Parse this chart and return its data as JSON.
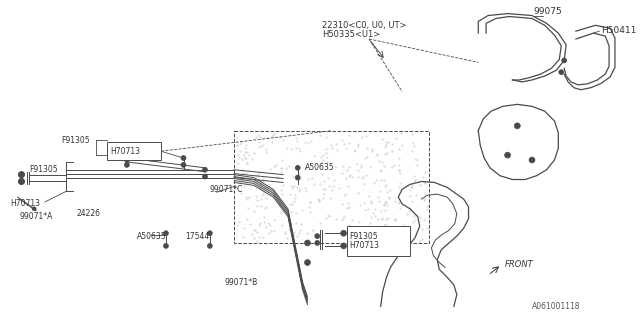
{
  "background_color": "#ffffff",
  "line_color": "#4a4a4a",
  "text_color": "#333333",
  "part_number": "A061001118",
  "labels": {
    "l22310": "22310<C0, U0, UT>",
    "lH50335": "H50335<U1>",
    "l99075": "99075",
    "lH50411": "H50411",
    "lF91305_a": "F91305",
    "lH70713_a": "H70713",
    "lF91305_b": "F91305",
    "lH70713_b": "H70713",
    "l99071A": "99071*A",
    "l24226": "24226",
    "lA50635_a": "A50635",
    "l17544": "17544",
    "l99071B": "99071*B",
    "l99071C": "99071*C",
    "lA50635_b": "A50635",
    "lF91305_c": "F91305",
    "lH70713_c": "H70713",
    "lFRONT": "FRONT"
  }
}
